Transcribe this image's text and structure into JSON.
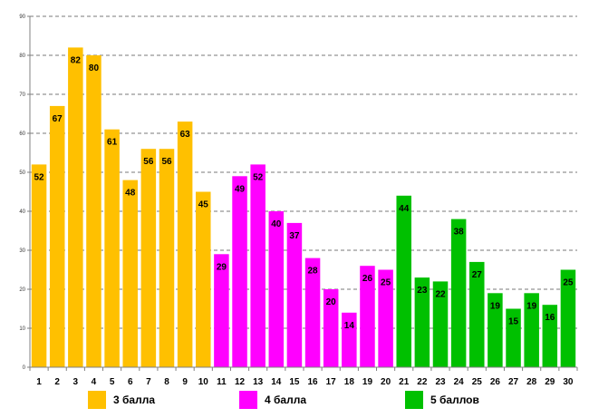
{
  "chart_data": {
    "type": "bar",
    "title": "",
    "xlabel": "",
    "ylabel": "",
    "ylim": [
      0,
      90
    ],
    "y_ticks": [
      0,
      10,
      20,
      30,
      40,
      50,
      60,
      70,
      80,
      90
    ],
    "grid": true,
    "categories": [
      "1",
      "2",
      "3",
      "4",
      "5",
      "6",
      "7",
      "8",
      "9",
      "10",
      "11",
      "12",
      "13",
      "14",
      "15",
      "16",
      "17",
      "18",
      "19",
      "20",
      "21",
      "22",
      "23",
      "24",
      "25",
      "26",
      "27",
      "28",
      "29",
      "30"
    ],
    "values": [
      52,
      67,
      82,
      80,
      61,
      48,
      56,
      56,
      63,
      45,
      29,
      49,
      52,
      40,
      37,
      28,
      20,
      14,
      26,
      25,
      44,
      23,
      22,
      38,
      27,
      19,
      15,
      19,
      16,
      25
    ],
    "groups": [
      {
        "name": "3 балла",
        "color": "#FFC000",
        "from": 1,
        "to": 10
      },
      {
        "name": "4 балла",
        "color": "#FF00FF",
        "from": 11,
        "to": 20
      },
      {
        "name": "5 баллов",
        "color": "#00C000",
        "from": 21,
        "to": 30
      }
    ]
  },
  "legend": [
    {
      "label": "3 балла",
      "color": "#FFC000"
    },
    {
      "label": "4 балла",
      "color": "#FF00FF"
    },
    {
      "label": "5 баллов",
      "color": "#00C000"
    }
  ]
}
